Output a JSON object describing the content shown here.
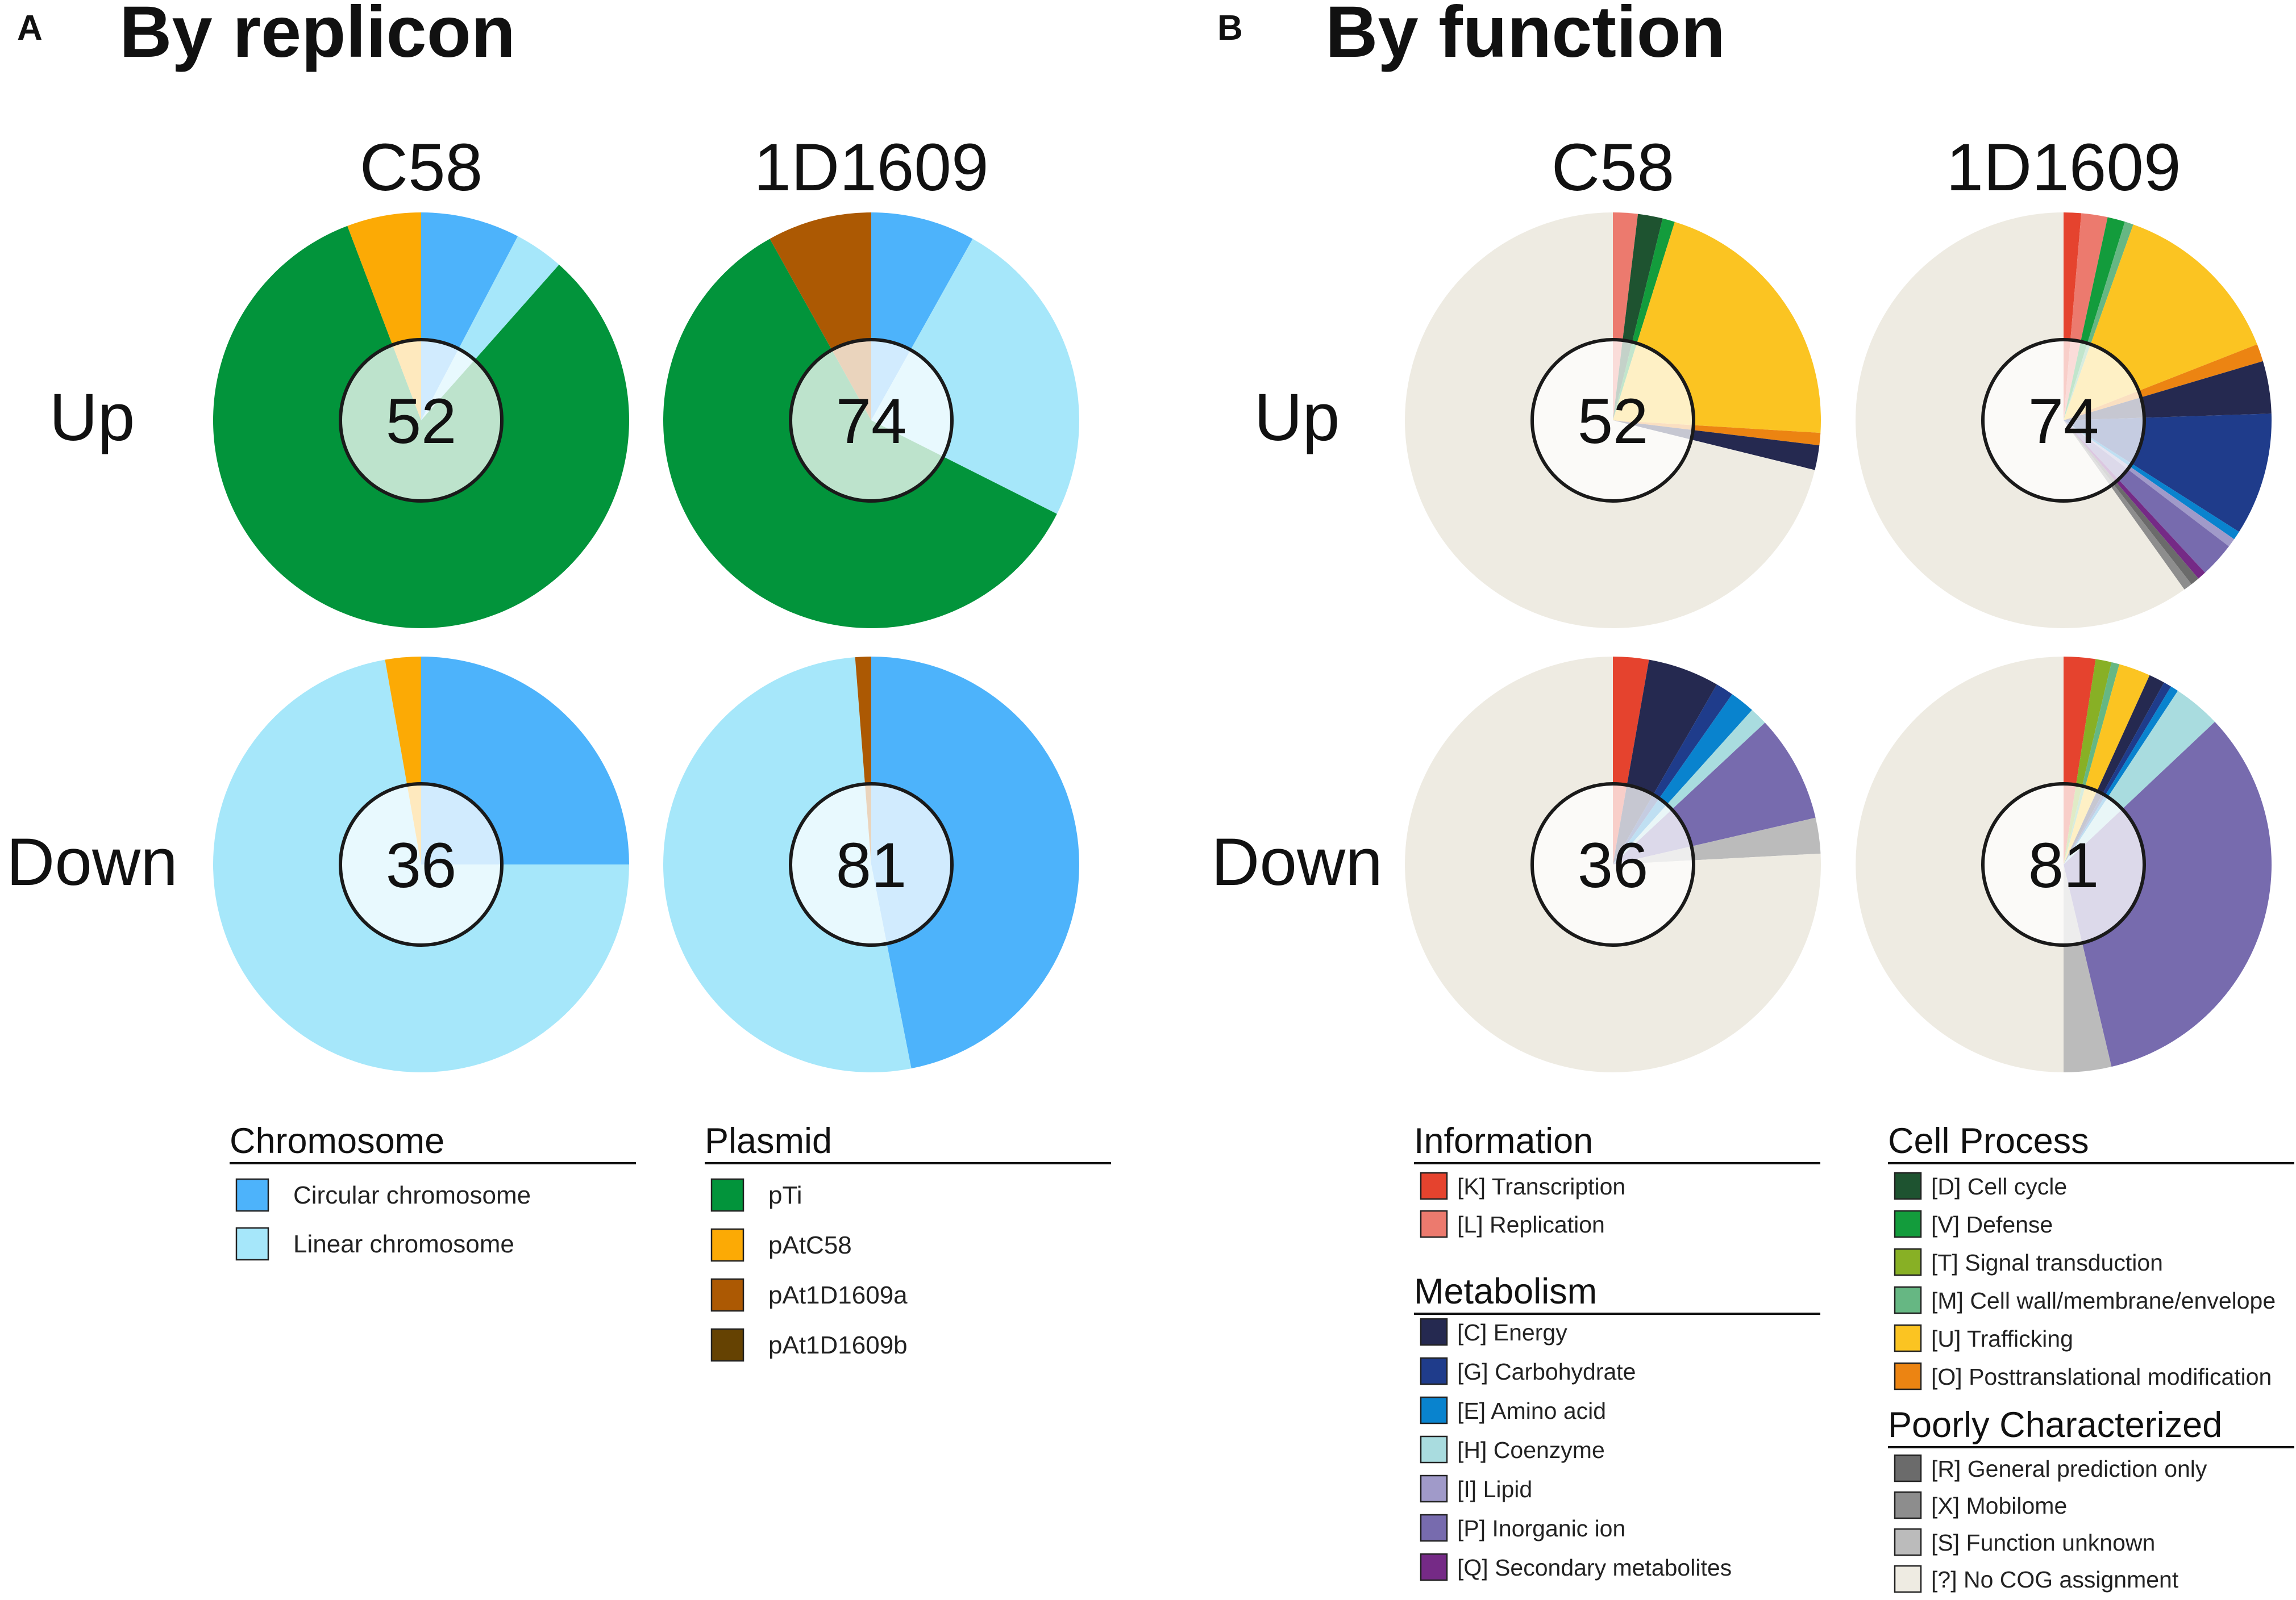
{
  "panels": [
    {
      "letter": "A",
      "title": "By replicon"
    },
    {
      "letter": "B",
      "title": "By function"
    }
  ],
  "row_labels": [
    "Up",
    "Down"
  ],
  "column_labels": [
    "C58",
    "1D1609"
  ],
  "colors": {
    "circular_chromosome": "#4db3fb",
    "linear_chromosome": "#a6e7fa",
    "pTi": "#02943b",
    "pAtC58": "#fcaa05",
    "pAt1D1609a": "#ac5903",
    "pAt1D1609b": "#654202",
    "K": "#e5432e",
    "L": "#ec7a6e",
    "D": "#1e5330",
    "V": "#139c3c",
    "T": "#88b025",
    "M": "#66b783",
    "U": "#fbc422",
    "O": "#ec8412",
    "C": "#252950",
    "G": "#1f3c8b",
    "E": "#0983ce",
    "H": "#a9dcdf",
    "I": "#a09ac9",
    "P": "#776bae",
    "Q": "#752a86",
    "R": "#6b6b6b",
    "X": "#8d8d8d",
    "S": "#bbbbbb",
    "NA": "#eeebe2"
  },
  "legend_A": [
    {
      "title": "Chromosome",
      "items": [
        {
          "key": "circular_chromosome",
          "label": "Circular chromosome"
        },
        {
          "key": "linear_chromosome",
          "label": "Linear chromosome"
        }
      ]
    },
    {
      "title": "Plasmid",
      "items": [
        {
          "key": "pTi",
          "label": "pTi"
        },
        {
          "key": "pAtC58",
          "label": "pAtC58"
        },
        {
          "key": "pAt1D1609a",
          "label": "pAt1D1609a"
        },
        {
          "key": "pAt1D1609b",
          "label": "pAt1D1609b"
        }
      ]
    }
  ],
  "legend_B": [
    {
      "title": "Information",
      "items": [
        {
          "key": "K",
          "label": "[K] Transcription"
        },
        {
          "key": "L",
          "label": "[L] Replication"
        }
      ]
    },
    {
      "title": "Metabolism",
      "items": [
        {
          "key": "C",
          "label": "[C] Energy"
        },
        {
          "key": "G",
          "label": "[G] Carbohydrate"
        },
        {
          "key": "E",
          "label": "[E] Amino acid"
        },
        {
          "key": "H",
          "label": "[H] Coenzyme"
        },
        {
          "key": "I",
          "label": "[I] Lipid"
        },
        {
          "key": "P",
          "label": "[P] Inorganic ion"
        },
        {
          "key": "Q",
          "label": "[Q] Secondary metabolites"
        }
      ]
    },
    {
      "title": "Cell Process",
      "items": [
        {
          "key": "D",
          "label": "[D] Cell cycle"
        },
        {
          "key": "V",
          "label": "[V] Defense"
        },
        {
          "key": "T",
          "label": "[T] Signal transduction"
        },
        {
          "key": "M",
          "label": "[M] Cell wall/membrane/envelope"
        },
        {
          "key": "U",
          "label": "[U] Trafficking"
        },
        {
          "key": "O",
          "label": "[O] Posttranslational modification"
        }
      ]
    },
    {
      "title": "Poorly Characterized",
      "items": [
        {
          "key": "R",
          "label": "[R] General prediction only"
        },
        {
          "key": "X",
          "label": "[X] Mobilome"
        },
        {
          "key": "S",
          "label": "[S] Function unknown"
        },
        {
          "key": "NA",
          "label": "[?] No COG assignment"
        }
      ]
    }
  ],
  "chart_data": [
    {
      "type": "pie",
      "panel": "A",
      "strain": "C58",
      "direction": "Up",
      "total": "52",
      "slices": [
        {
          "key": "circular_chromosome",
          "value": 4
        },
        {
          "key": "linear_chromosome",
          "value": 2
        },
        {
          "key": "pTi",
          "value": 43
        },
        {
          "key": "pAtC58",
          "value": 3
        }
      ]
    },
    {
      "type": "pie",
      "panel": "A",
      "strain": "1D1609",
      "direction": "Up",
      "total": "74",
      "slices": [
        {
          "key": "circular_chromosome",
          "value": 6
        },
        {
          "key": "linear_chromosome",
          "value": 18
        },
        {
          "key": "pTi",
          "value": 44
        },
        {
          "key": "pAt1D1609a",
          "value": 6
        }
      ]
    },
    {
      "type": "pie",
      "panel": "A",
      "strain": "C58",
      "direction": "Down",
      "total": "36",
      "slices": [
        {
          "key": "circular_chromosome",
          "value": 9
        },
        {
          "key": "linear_chromosome",
          "value": 26
        },
        {
          "key": "pAtC58",
          "value": 1
        }
      ]
    },
    {
      "type": "pie",
      "panel": "A",
      "strain": "1D1609",
      "direction": "Down",
      "total": "81",
      "slices": [
        {
          "key": "circular_chromosome",
          "value": 38
        },
        {
          "key": "linear_chromosome",
          "value": 42
        },
        {
          "key": "pAt1D1609a",
          "value": 1
        }
      ]
    },
    {
      "type": "pie",
      "panel": "B",
      "strain": "C58",
      "direction": "Up",
      "total": "52",
      "slices": [
        {
          "key": "L",
          "value": 1
        },
        {
          "key": "D",
          "value": 1
        },
        {
          "key": "V",
          "value": 0.5
        },
        {
          "key": "U",
          "value": 11
        },
        {
          "key": "O",
          "value": 0.5
        },
        {
          "key": "C",
          "value": 1
        },
        {
          "key": "NA",
          "value": 37
        }
      ]
    },
    {
      "type": "pie",
      "panel": "B",
      "strain": "1D1609",
      "direction": "Up",
      "total": "74",
      "slices": [
        {
          "key": "K",
          "value": 1
        },
        {
          "key": "L",
          "value": 1.5
        },
        {
          "key": "V",
          "value": 1
        },
        {
          "key": "M",
          "value": 0.5
        },
        {
          "key": "U",
          "value": 10
        },
        {
          "key": "O",
          "value": 1
        },
        {
          "key": "C",
          "value": 3
        },
        {
          "key": "G",
          "value": 7
        },
        {
          "key": "E",
          "value": 0.5
        },
        {
          "key": "I",
          "value": 0.5
        },
        {
          "key": "P",
          "value": 2
        },
        {
          "key": "Q",
          "value": 0.5
        },
        {
          "key": "R",
          "value": 0.5
        },
        {
          "key": "X",
          "value": 0.5
        },
        {
          "key": "NA",
          "value": 44
        }
      ]
    },
    {
      "type": "pie",
      "panel": "B",
      "strain": "C58",
      "direction": "Down",
      "total": "36",
      "slices": [
        {
          "key": "K",
          "value": 1
        },
        {
          "key": "C",
          "value": 2
        },
        {
          "key": "G",
          "value": 0.5
        },
        {
          "key": "E",
          "value": 0.7
        },
        {
          "key": "H",
          "value": 0.5
        },
        {
          "key": "P",
          "value": 3
        },
        {
          "key": "S",
          "value": 1
        },
        {
          "key": "NA",
          "value": 27.3
        }
      ]
    },
    {
      "type": "pie",
      "panel": "B",
      "strain": "1D1609",
      "direction": "Down",
      "total": "81",
      "slices": [
        {
          "key": "K",
          "value": 2
        },
        {
          "key": "T",
          "value": 1
        },
        {
          "key": "M",
          "value": 0.5
        },
        {
          "key": "U",
          "value": 2
        },
        {
          "key": "C",
          "value": 1
        },
        {
          "key": "G",
          "value": 0.5
        },
        {
          "key": "E",
          "value": 0.5
        },
        {
          "key": "H",
          "value": 3
        },
        {
          "key": "P",
          "value": 27
        },
        {
          "key": "S",
          "value": 3
        },
        {
          "key": "NA",
          "value": 40.5
        }
      ]
    }
  ]
}
